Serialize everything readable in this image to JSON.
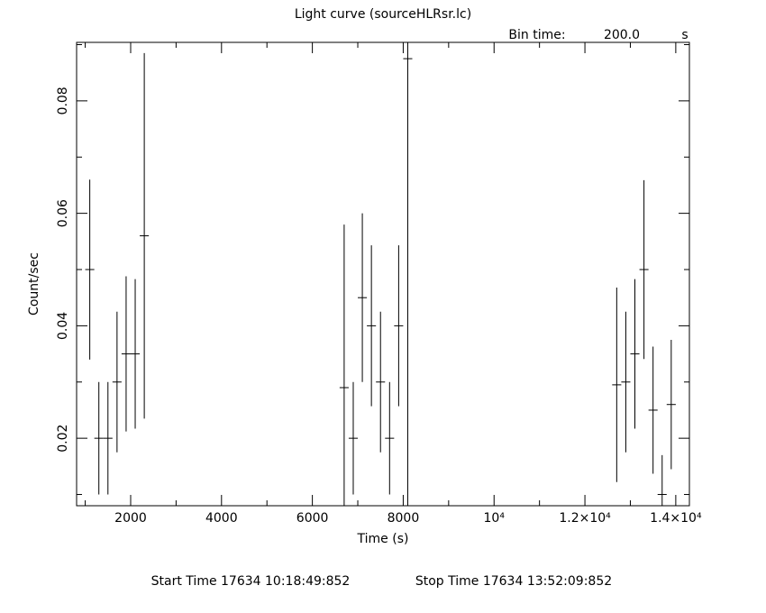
{
  "chart_data": {
    "type": "errorbar",
    "title": "Light curve (sourceHLRsr.lc)",
    "bin_time_label": "Bin time:",
    "bin_time": "200.0",
    "bin_time_unit": "s",
    "xlabel": "Time (s)",
    "ylabel": "Count/sec",
    "start_time": "Start Time 17634 10:18:49:852",
    "stop_time": "Stop Time 17634 13:52:09:852",
    "color": "#000000",
    "xlim": [
      810,
      14300
    ],
    "ylim": [
      0.008,
      0.0904
    ],
    "xticks": [
      2000,
      4000,
      6000,
      8000,
      {
        "value": 10000,
        "label": "10⁴"
      },
      {
        "value": 12000,
        "label": "1.2×10⁴"
      },
      {
        "value": 14000,
        "label": "1.4×10⁴"
      }
    ],
    "xminorticks": [
      1000,
      3000,
      5000,
      7000,
      9000,
      11000,
      13000
    ],
    "yticks": [
      0.02,
      0.04,
      0.06,
      0.08
    ],
    "yminorticks": [
      0.01,
      0.03,
      0.05,
      0.07,
      0.09
    ],
    "xerr": 100,
    "x": [
      1100,
      1300,
      1500,
      1700,
      1900,
      2100,
      2300,
      6700,
      6900,
      7100,
      7300,
      7500,
      7700,
      7900,
      8100,
      12700,
      12900,
      13100,
      13300,
      13500,
      13700,
      13900
    ],
    "values": [
      0.05,
      0.02,
      0.02,
      0.03,
      0.035,
      0.035,
      0.056,
      0.029,
      0.02,
      0.045,
      0.04,
      0.03,
      0.02,
      0.04,
      0.0875,
      0.0295,
      0.03,
      0.035,
      0.05,
      0.025,
      0.01,
      0.026
    ],
    "yerr": [
      0.016,
      0.01,
      0.01,
      0.0125,
      0.0138,
      0.0133,
      0.0325,
      0.029,
      0.01,
      0.015,
      0.0143,
      0.0125,
      0.01,
      0.0143,
      0.085,
      0.0173,
      0.0125,
      0.0133,
      0.0159,
      0.0113,
      0.007,
      0.0115
    ]
  }
}
